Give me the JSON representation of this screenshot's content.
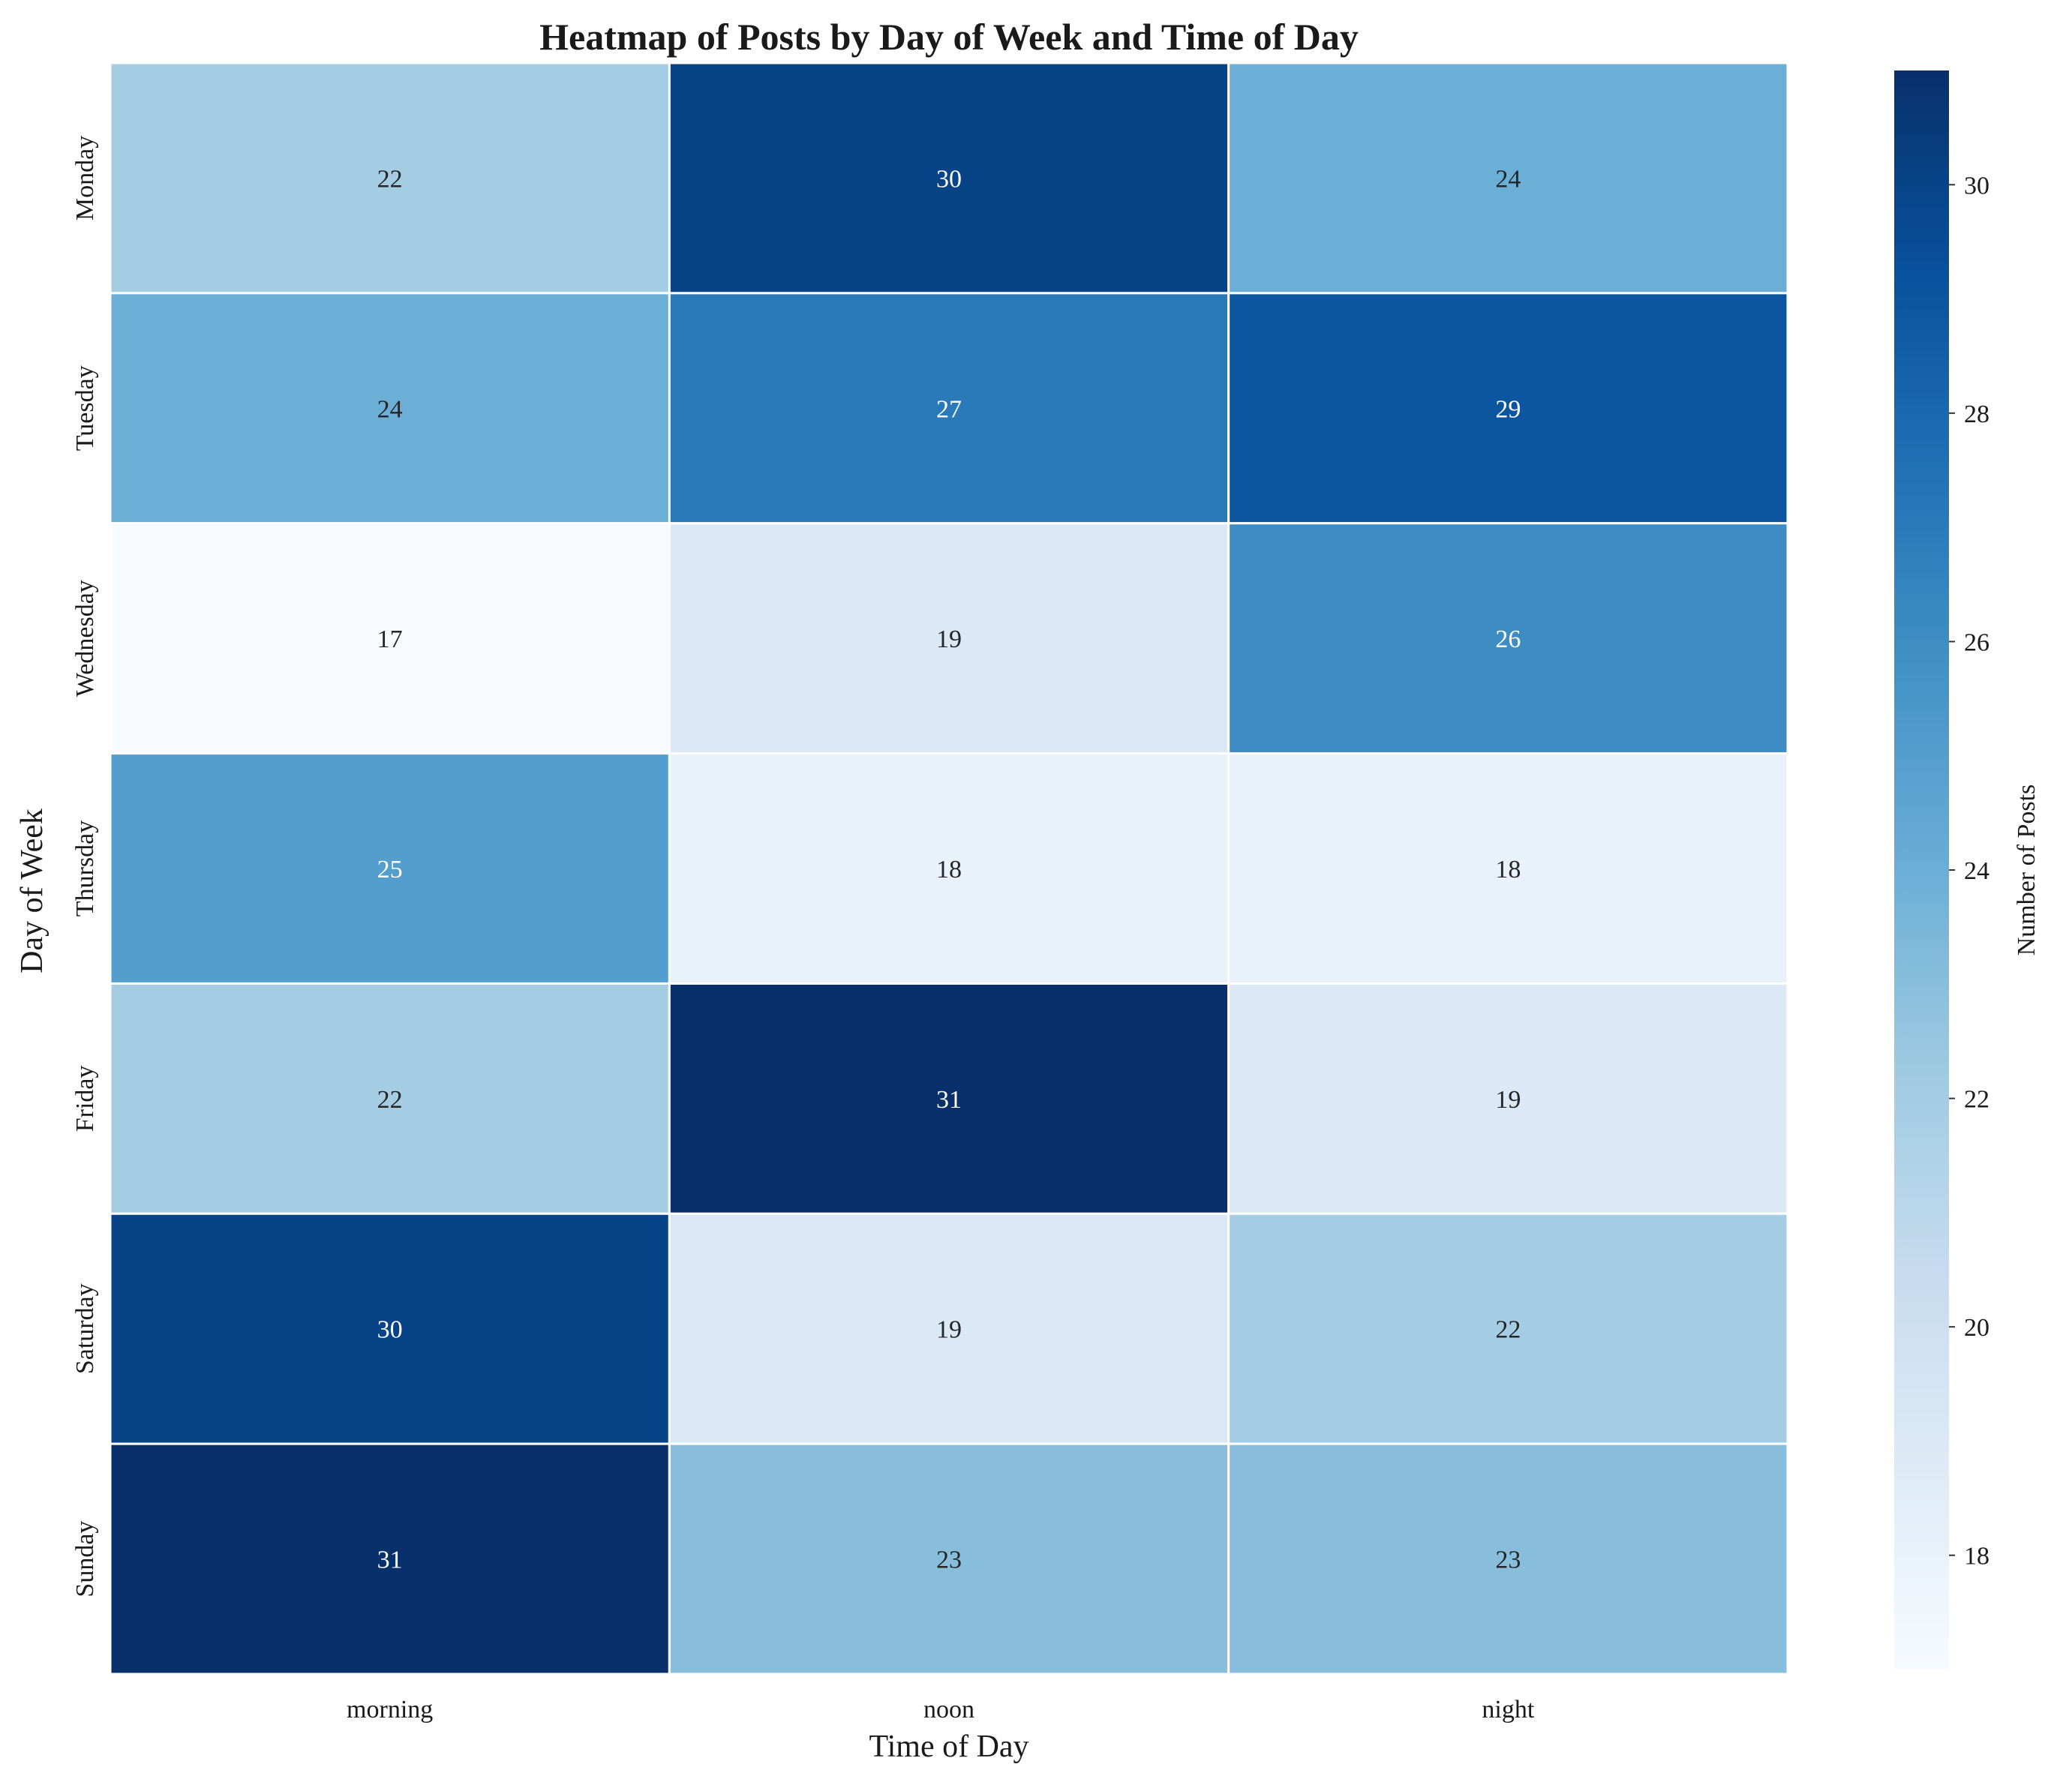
{
  "chart_data": {
    "type": "heatmap",
    "title": "Heatmap of Posts by Day of Week and Time of Day",
    "xlabel": "Time of Day",
    "ylabel": "Day of Week",
    "x_categories": [
      "morning",
      "noon",
      "night"
    ],
    "y_categories": [
      "Monday",
      "Tuesday",
      "Wednesday",
      "Thursday",
      "Friday",
      "Saturday",
      "Sunday"
    ],
    "values": [
      [
        22,
        30,
        24
      ],
      [
        24,
        27,
        29
      ],
      [
        17,
        19,
        26
      ],
      [
        25,
        18,
        18
      ],
      [
        22,
        31,
        19
      ],
      [
        30,
        19,
        22
      ],
      [
        31,
        23,
        23
      ]
    ],
    "colormap": "Blues",
    "vmin": 17,
    "vmax": 31,
    "colorbar": {
      "label": "Number of Posts",
      "ticks": [
        18,
        20,
        22,
        24,
        26,
        28,
        30
      ]
    },
    "annotations": true,
    "grid": false
  }
}
